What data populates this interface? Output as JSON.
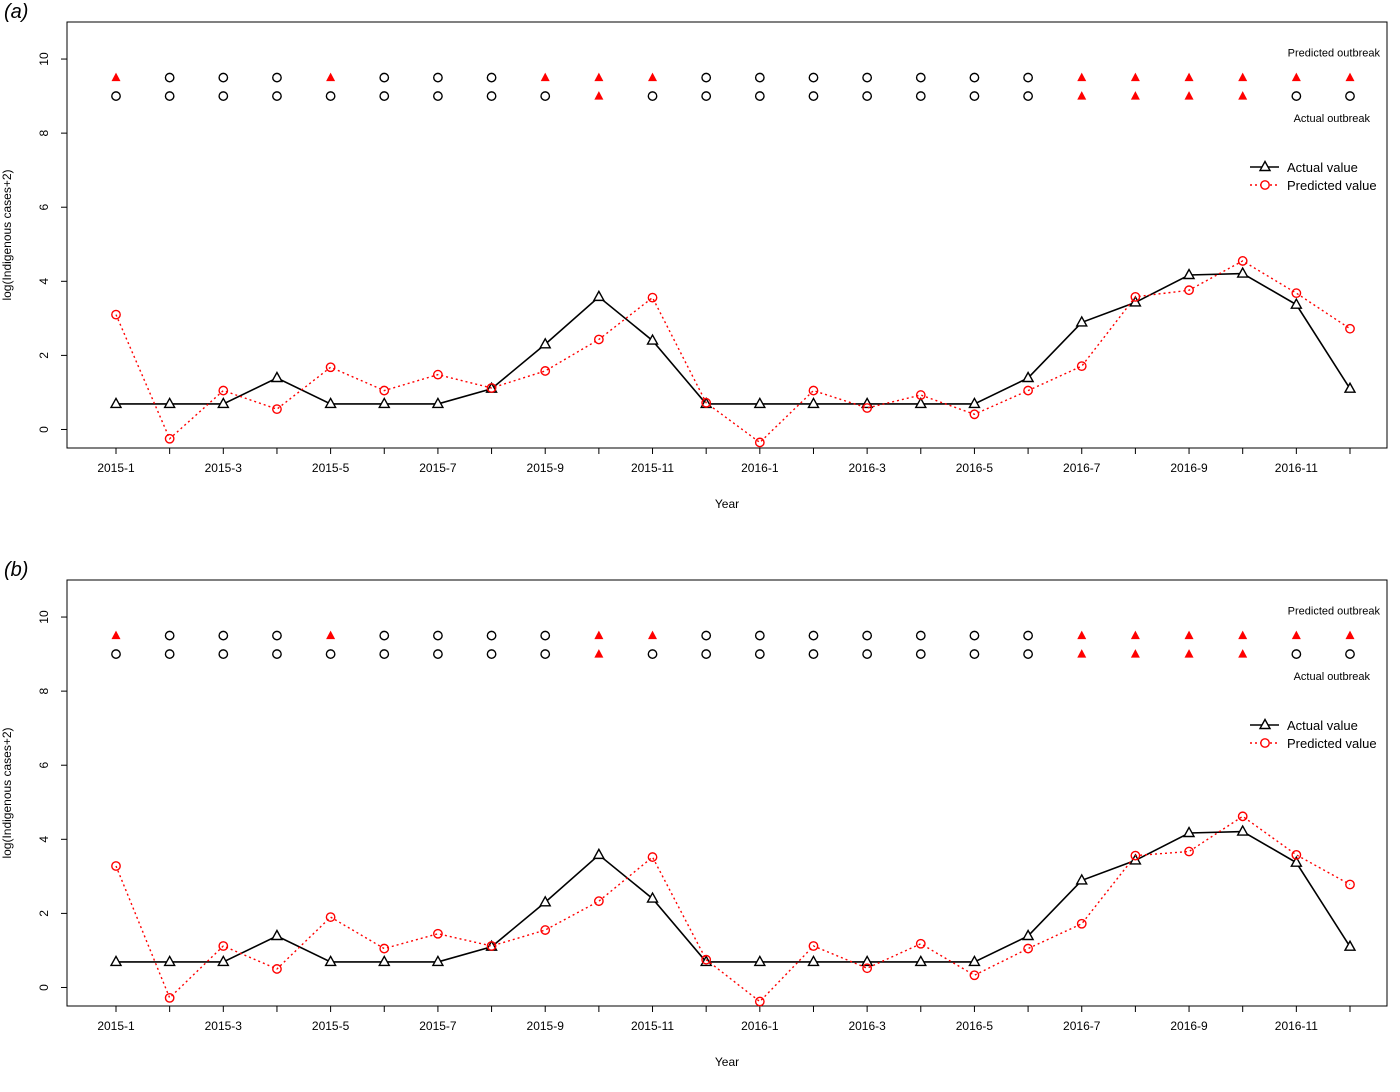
{
  "chart_data": [
    {
      "type": "line",
      "panel_label": "(a)",
      "xlabel": "Year",
      "ylabel": "log(Indigenous cases+2)",
      "ylim": [
        -0.5,
        11
      ],
      "yticks": [
        0,
        2,
        4,
        6,
        8,
        10
      ],
      "categories": [
        "2015-1",
        "2015-2",
        "2015-3",
        "2015-4",
        "2015-5",
        "2015-6",
        "2015-7",
        "2015-8",
        "2015-9",
        "2015-10",
        "2015-11",
        "2015-12",
        "2016-1",
        "2016-2",
        "2016-3",
        "2016-4",
        "2016-5",
        "2016-6",
        "2016-7",
        "2016-8",
        "2016-9",
        "2016-10",
        "2016-11",
        "2016-12"
      ],
      "tick_labels": [
        "2015-1",
        "2015-3",
        "2015-5",
        "2015-7",
        "2015-9",
        "2015-11",
        "2016-1",
        "2016-3",
        "2016-5",
        "2016-7",
        "2016-9",
        "2016-11"
      ],
      "series": [
        {
          "name": "Actual value",
          "color": "#000000",
          "marker": "triangle-open",
          "line": "solid",
          "values": [
            0.69,
            0.69,
            0.69,
            1.39,
            0.69,
            0.69,
            0.69,
            1.1,
            2.3,
            3.58,
            2.4,
            0.69,
            0.69,
            0.69,
            0.69,
            0.69,
            0.69,
            1.39,
            2.89,
            3.43,
            4.17,
            4.21,
            3.37,
            1.1
          ]
        },
        {
          "name": "Predicted value",
          "color": "#ff0000",
          "marker": "circle-open",
          "line": "dotted",
          "values": [
            3.1,
            -0.25,
            1.05,
            0.55,
            1.68,
            1.05,
            1.48,
            1.12,
            1.58,
            2.43,
            3.56,
            0.72,
            -0.35,
            1.05,
            0.58,
            0.93,
            0.41,
            1.05,
            1.71,
            3.58,
            3.76,
            4.55,
            3.68,
            2.72
          ]
        }
      ],
      "outbreak_rows": {
        "predicted": {
          "label": "Predicted outbreak",
          "y": 9.5,
          "values": [
            1,
            0,
            0,
            0,
            1,
            0,
            0,
            0,
            1,
            1,
            1,
            0,
            0,
            0,
            0,
            0,
            0,
            0,
            1,
            1,
            1,
            1,
            1,
            1
          ]
        },
        "actual": {
          "label": "Actual outbreak",
          "y": 9.0,
          "values": [
            0,
            0,
            0,
            0,
            0,
            0,
            0,
            0,
            0,
            1,
            0,
            0,
            0,
            0,
            0,
            0,
            0,
            0,
            1,
            1,
            1,
            1,
            0,
            0
          ]
        }
      },
      "legend": {
        "placement": "right",
        "entries": [
          "Actual value",
          "Predicted value"
        ]
      },
      "grid": false
    },
    {
      "type": "line",
      "panel_label": "(b)",
      "xlabel": "Year",
      "ylabel": "log(Indigenous cases+2)",
      "ylim": [
        -0.5,
        11
      ],
      "yticks": [
        0,
        2,
        4,
        6,
        8,
        10
      ],
      "categories": [
        "2015-1",
        "2015-2",
        "2015-3",
        "2015-4",
        "2015-5",
        "2015-6",
        "2015-7",
        "2015-8",
        "2015-9",
        "2015-10",
        "2015-11",
        "2015-12",
        "2016-1",
        "2016-2",
        "2016-3",
        "2016-4",
        "2016-5",
        "2016-6",
        "2016-7",
        "2016-8",
        "2016-9",
        "2016-10",
        "2016-11",
        "2016-12"
      ],
      "tick_labels": [
        "2015-1",
        "2015-3",
        "2015-5",
        "2015-7",
        "2015-9",
        "2015-11",
        "2016-1",
        "2016-3",
        "2016-5",
        "2016-7",
        "2016-9",
        "2016-11"
      ],
      "series": [
        {
          "name": "Actual value",
          "color": "#000000",
          "marker": "triangle-open",
          "line": "solid",
          "values": [
            0.69,
            0.69,
            0.69,
            1.39,
            0.69,
            0.69,
            0.69,
            1.1,
            2.3,
            3.58,
            2.4,
            0.69,
            0.69,
            0.69,
            0.69,
            0.69,
            0.69,
            1.39,
            2.89,
            3.43,
            4.17,
            4.21,
            3.37,
            1.1
          ]
        },
        {
          "name": "Predicted value",
          "color": "#ff0000",
          "marker": "circle-open",
          "line": "dotted",
          "values": [
            3.28,
            -0.28,
            1.12,
            0.5,
            1.9,
            1.05,
            1.45,
            1.12,
            1.55,
            2.33,
            3.52,
            0.75,
            -0.38,
            1.12,
            0.52,
            1.18,
            0.33,
            1.05,
            1.72,
            3.56,
            3.67,
            4.62,
            3.58,
            2.78
          ]
        }
      ],
      "outbreak_rows": {
        "predicted": {
          "label": "Predicted outbreak",
          "y": 9.5,
          "values": [
            1,
            0,
            0,
            0,
            1,
            0,
            0,
            0,
            0,
            1,
            1,
            0,
            0,
            0,
            0,
            0,
            0,
            0,
            1,
            1,
            1,
            1,
            1,
            1
          ]
        },
        "actual": {
          "label": "Actual outbreak",
          "y": 9.0,
          "values": [
            0,
            0,
            0,
            0,
            0,
            0,
            0,
            0,
            0,
            1,
            0,
            0,
            0,
            0,
            0,
            0,
            0,
            0,
            1,
            1,
            1,
            1,
            0,
            0
          ]
        }
      },
      "legend": {
        "placement": "right",
        "entries": [
          "Actual value",
          "Predicted value"
        ]
      },
      "grid": false
    }
  ]
}
